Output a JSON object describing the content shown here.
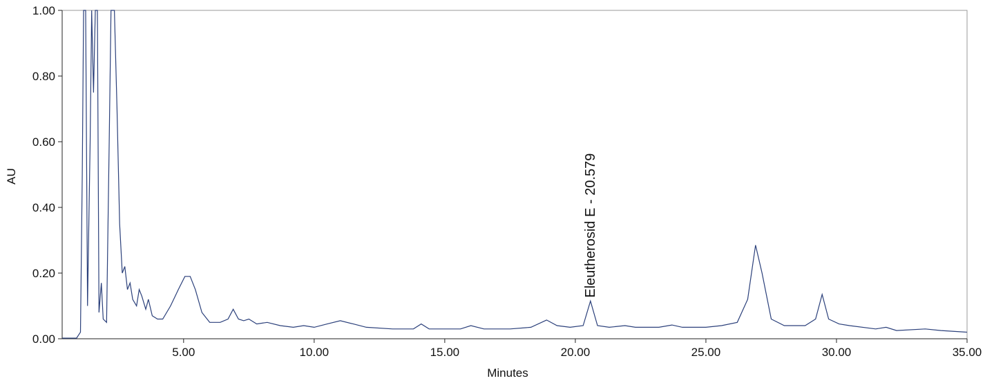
{
  "chart_data": {
    "type": "line",
    "x_label": "Minutes",
    "y_label": "AU",
    "color": "#2a3f7a",
    "xlim": [
      0.35,
      35
    ],
    "ylim": [
      0,
      1
    ],
    "xticks": [
      {
        "value": 5,
        "label": "5.00"
      },
      {
        "value": 10,
        "label": "10.00"
      },
      {
        "value": 15,
        "label": "15.00"
      },
      {
        "value": 20,
        "label": "20.00"
      },
      {
        "value": 25,
        "label": "25.00"
      },
      {
        "value": 30,
        "label": "30.00"
      },
      {
        "value": 35,
        "label": "35.00"
      }
    ],
    "yticks": [
      {
        "value": 0,
        "label": "0.00"
      },
      {
        "value": 0.2,
        "label": "0.20"
      },
      {
        "value": 0.4,
        "label": "0.40"
      },
      {
        "value": 0.6,
        "label": "0.60"
      },
      {
        "value": 0.8,
        "label": "0.80"
      },
      {
        "value": 1,
        "label": "1.00"
      }
    ],
    "annotations": [
      {
        "text": "Eleutherosid E - 20.579",
        "x": 20.579,
        "y": 0.125
      }
    ],
    "x": [
      0.35,
      0.9,
      1.05,
      1.12,
      1.17,
      1.25,
      1.32,
      1.42,
      1.48,
      1.55,
      1.62,
      1.7,
      1.76,
      1.85,
      1.92,
      2.05,
      2.15,
      2.22,
      2.35,
      2.45,
      2.55,
      2.65,
      2.75,
      2.85,
      2.95,
      3.05,
      3.2,
      3.3,
      3.4,
      3.55,
      3.65,
      3.8,
      4.0,
      4.2,
      4.5,
      4.8,
      5.05,
      5.25,
      5.45,
      5.7,
      6.0,
      6.4,
      6.7,
      6.9,
      7.1,
      7.3,
      7.5,
      7.8,
      8.2,
      8.7,
      9.2,
      9.6,
      10.0,
      10.5,
      11.0,
      11.5,
      12.0,
      13.0,
      13.8,
      14.1,
      14.4,
      15.0,
      15.6,
      16.0,
      16.5,
      17.5,
      18.3,
      18.9,
      19.3,
      19.8,
      20.3,
      20.58,
      20.85,
      21.3,
      21.9,
      22.3,
      23.2,
      23.7,
      24.1,
      25.0,
      25.6,
      26.2,
      26.6,
      26.9,
      27.15,
      27.5,
      28.0,
      28.8,
      29.2,
      29.45,
      29.7,
      30.1,
      30.5,
      31.5,
      31.9,
      32.3,
      33.4,
      34.0,
      35.0
    ],
    "values": [
      0.002,
      0.002,
      0.02,
      0.5,
      1.0,
      1.0,
      0.1,
      0.6,
      1.0,
      0.75,
      1.0,
      1.0,
      0.08,
      0.17,
      0.06,
      0.05,
      0.6,
      1.0,
      1.0,
      0.7,
      0.35,
      0.2,
      0.22,
      0.15,
      0.17,
      0.12,
      0.1,
      0.15,
      0.13,
      0.09,
      0.12,
      0.07,
      0.06,
      0.06,
      0.1,
      0.15,
      0.19,
      0.19,
      0.15,
      0.08,
      0.05,
      0.05,
      0.06,
      0.09,
      0.06,
      0.055,
      0.06,
      0.045,
      0.05,
      0.04,
      0.035,
      0.04,
      0.035,
      0.045,
      0.055,
      0.045,
      0.035,
      0.03,
      0.03,
      0.045,
      0.03,
      0.03,
      0.03,
      0.04,
      0.03,
      0.03,
      0.035,
      0.057,
      0.04,
      0.035,
      0.04,
      0.115,
      0.04,
      0.035,
      0.04,
      0.035,
      0.035,
      0.042,
      0.035,
      0.035,
      0.04,
      0.05,
      0.12,
      0.285,
      0.2,
      0.06,
      0.04,
      0.04,
      0.06,
      0.135,
      0.06,
      0.045,
      0.04,
      0.03,
      0.035,
      0.025,
      0.03,
      0.025,
      0.02
    ]
  }
}
